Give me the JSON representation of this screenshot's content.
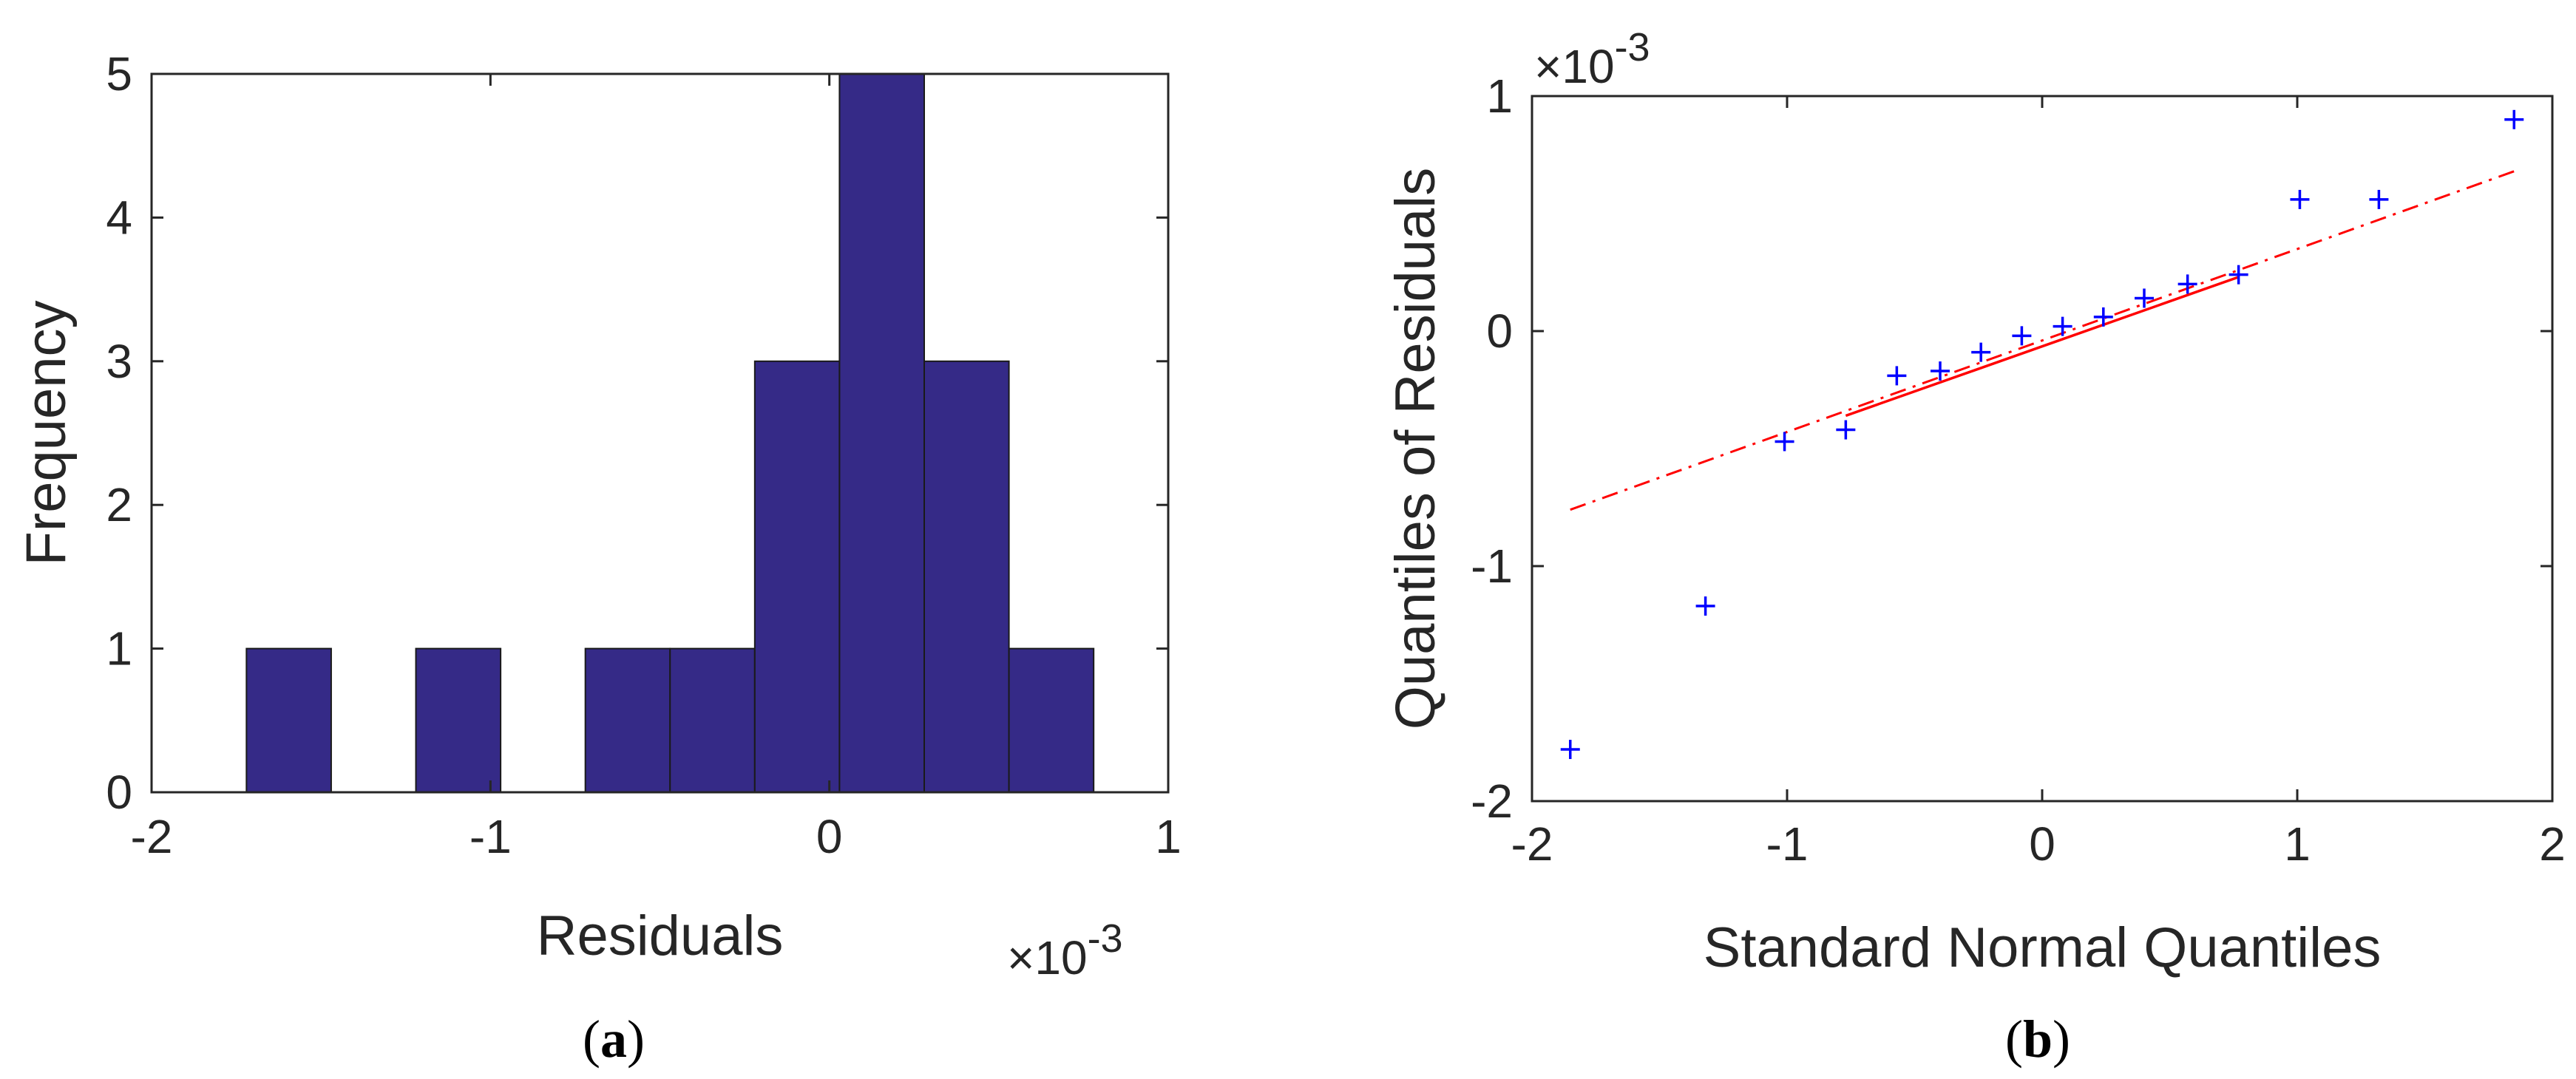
{
  "colors": {
    "bar_fill": "#352a87",
    "bar_edge": "#1a1a1a",
    "marker": "#0000ff",
    "ref_line": "#ff0000",
    "axis": "#262626",
    "background": "#ffffff"
  },
  "panels": {
    "a": {
      "caption_open": "(",
      "caption_letter": "a",
      "caption_close": ")"
    },
    "b": {
      "caption_open": "(",
      "caption_letter": "b",
      "caption_close": ")"
    }
  },
  "chart_data": [
    {
      "type": "bar",
      "subtype": "histogram",
      "xlabel": "Residuals",
      "ylabel": "Frequency",
      "x_exponent_base": "×10",
      "x_exponent_power": "-3",
      "xlim": [
        -2,
        1
      ],
      "ylim": [
        0,
        5
      ],
      "xticks": [
        -2,
        -1,
        0,
        1
      ],
      "yticks": [
        0,
        1,
        2,
        3,
        4,
        5
      ],
      "xtick_labels": [
        "-2",
        "-1",
        "0",
        "1"
      ],
      "ytick_labels": [
        "0",
        "1",
        "2",
        "3",
        "4",
        "5"
      ],
      "bin_edges": [
        -1.72,
        -1.47,
        -1.22,
        -0.97,
        -0.72,
        -0.47,
        -0.22,
        0.03,
        0.28,
        0.53,
        0.78
      ],
      "values": [
        1,
        0,
        1,
        0,
        1,
        1,
        3,
        5,
        3,
        1
      ],
      "grid": false
    },
    {
      "type": "scatter",
      "subtype": "qq-plot",
      "xlabel": "Standard Normal Quantiles",
      "ylabel": "Quantiles of Residuals",
      "y_exponent_base": "×10",
      "y_exponent_power": "-3",
      "xlim": [
        -2,
        2
      ],
      "ylim": [
        -2,
        1
      ],
      "xticks": [
        -2,
        -1,
        0,
        1,
        2
      ],
      "yticks": [
        -2,
        -1,
        0,
        1
      ],
      "xtick_labels": [
        "-2",
        "-1",
        "0",
        "1",
        "2"
      ],
      "ytick_labels": [
        "-2",
        "-1",
        "0",
        "1"
      ],
      "points": {
        "x": [
          -1.85,
          -1.32,
          -1.01,
          -0.77,
          -0.57,
          -0.4,
          -0.24,
          -0.08,
          0.08,
          0.24,
          0.4,
          0.57,
          0.77,
          1.01,
          1.32,
          1.85
        ],
        "y": [
          -1.78,
          -1.17,
          -0.47,
          -0.42,
          -0.19,
          -0.17,
          -0.09,
          -0.02,
          0.02,
          0.06,
          0.14,
          0.2,
          0.24,
          0.56,
          0.56,
          0.9
        ]
      },
      "reference_line": {
        "solid": {
          "x": [
            -0.77,
            0.77
          ],
          "y": [
            -0.36,
            0.23
          ]
        },
        "dashdot_extent": {
          "x": [
            -1.85,
            1.85
          ],
          "y": [
            -0.76,
            0.68
          ]
        }
      },
      "grid": false
    }
  ]
}
